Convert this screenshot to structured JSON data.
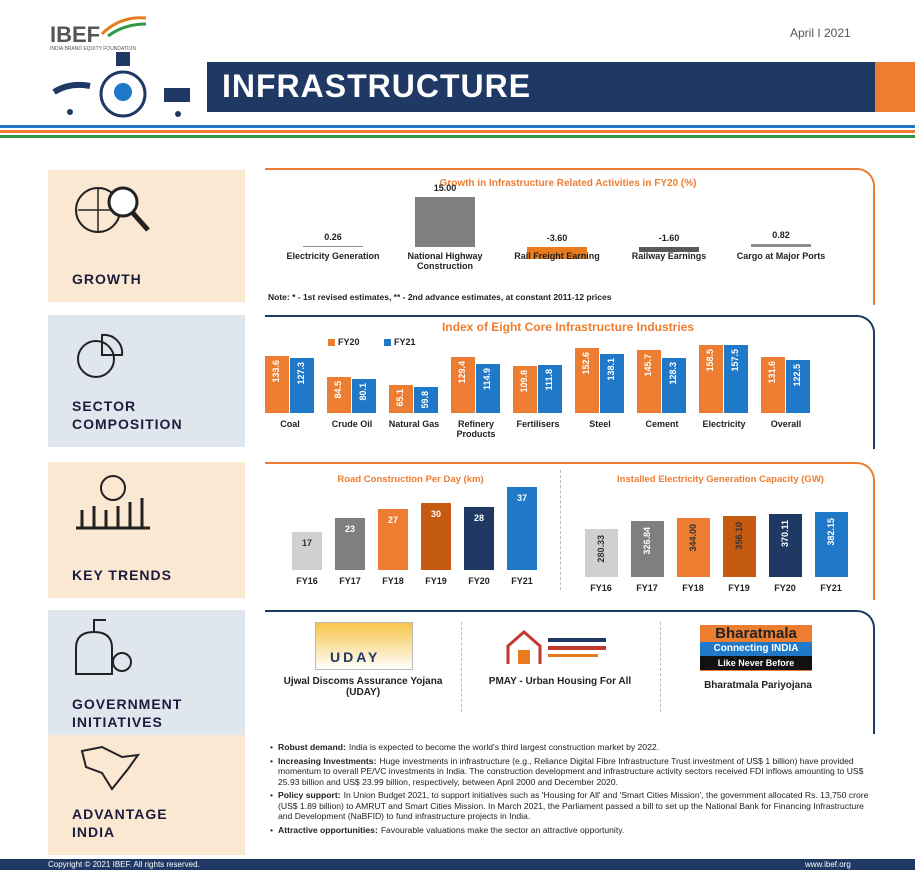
{
  "header": {
    "logo": "IBEF",
    "logo_sub": "INDIA BRAND EQUITY FOUNDATION",
    "date": "April I 2021",
    "title": "INFRASTRUCTURE"
  },
  "growth": {
    "label": "GROWTH",
    "chart": {
      "type": "bar",
      "title": "Growth in Infrastructure Related Activities in FY20 (%)",
      "categories": [
        "Electricity Generation",
        "National Highway Construction",
        "Rail Freight Earning",
        "Railway Earnings",
        "Cargo at Major Ports"
      ],
      "values": [
        0.26,
        15.0,
        -3.6,
        -1.6,
        0.82
      ],
      "value_labels": [
        "0.26",
        "15.00",
        "-3.60",
        "-1.60",
        "0.82"
      ],
      "colors": [
        "#8c8c8c",
        "#7f7f7f",
        "#e87b1e",
        "#595959",
        "#8c8c8c"
      ]
    },
    "note": "Note: * - 1st revised estimates, ** - 2nd advance estimates, at constant 2011-12 prices"
  },
  "sector": {
    "label": "SECTOR COMPOSITION",
    "chart": {
      "type": "bar",
      "title": "Index of Eight Core Infrastructure Industries",
      "categories": [
        "Coal",
        "Crude Oil",
        "Natural Gas",
        "Refinery Products",
        "Fertilisers",
        "Steel",
        "Cement",
        "Electricity",
        "Overall"
      ],
      "series": [
        {
          "name": "FY20",
          "color": "#ed7d31",
          "values": [
            133.6,
            84.5,
            65.1,
            129.4,
            109.8,
            152.6,
            145.7,
            158.5,
            131.6
          ]
        },
        {
          "name": "FY21",
          "color": "#1f78c8",
          "values": [
            127.3,
            80.1,
            59.8,
            114.9,
            111.8,
            138.1,
            128.3,
            157.5,
            122.5
          ]
        }
      ]
    }
  },
  "trends": {
    "label": "KEY TRENDS",
    "charts": [
      {
        "type": "bar",
        "title": "Road Construction Per Day (km)",
        "categories": [
          "FY16",
          "FY17",
          "FY18",
          "FY19",
          "FY20",
          "FY21"
        ],
        "values": [
          17,
          23,
          27,
          30,
          28,
          37
        ],
        "colors": [
          "#d0d0d0",
          "#7f7f7f",
          "#ed7d31",
          "#c55a11",
          "#1f3864",
          "#1f78c8"
        ],
        "label_colors": [
          "#333333",
          "#ffffff",
          "#ffffff",
          "#ffffff",
          "#ffffff",
          "#ffffff"
        ]
      },
      {
        "type": "bar",
        "title": "Installed Electricity Generation Capacity (GW)",
        "categories": [
          "FY16",
          "FY17",
          "FY18",
          "FY19",
          "FY20",
          "FY21"
        ],
        "values": [
          280.33,
          326.84,
          344.0,
          356.1,
          370.11,
          382.15
        ],
        "value_labels": [
          "280.33",
          "326.84",
          "344.00",
          "356.10",
          "370.11",
          "382.15"
        ],
        "colors": [
          "#d0d0d0",
          "#7f7f7f",
          "#ed7d31",
          "#c55a11",
          "#1f3864",
          "#1f78c8"
        ],
        "label_colors": [
          "#333333",
          "#ffffff",
          "#333333",
          "#333333",
          "#ffffff",
          "#ffffff"
        ]
      }
    ]
  },
  "government": {
    "label": "GOVERNMENT INITIATIVES",
    "items": [
      {
        "logo": "UDAY",
        "name": "Ujwal Discoms Assurance Yojana (UDAY)"
      },
      {
        "name": "PMAY - Urban Housing For All"
      },
      {
        "logo": "Bharatmala",
        "logo_line2": "Connecting INDIA",
        "logo_line3": "Like Never Before",
        "name": "Bharatmala Pariyojana"
      }
    ]
  },
  "advantage": {
    "label": "ADVANTAGE INDIA",
    "bullets": [
      {
        "lead": "Robust demand:",
        "text": "India is expected to become the world's third largest construction market by 2022."
      },
      {
        "lead": "Increasing Investments:",
        "text": "Huge investments in infrastructure (e.g., Reliance Digital Fibre Infrastructure Trust investment of US$ 1 billion) have provided momentum to overall PE/VC investments in India. The construction development and infrastructure activity sectors received FDI inflows amounting to US$ 25.93 billion and US$ 23.99 billion, respectively, between April 2000 and December 2020."
      },
      {
        "lead": "Policy support:",
        "text": "In Union Budget 2021, to support initiatives such as 'Housing for All' and 'Smart Cities Mission', the government allocated Rs. 13,750 crore (US$ 1.89 billion) to AMRUT and Smart Cities Mission. In March 2021, the Parliament passed a bill to set up the National Bank for Financing Infrastructure and Development (NaBFID) to fund infrastructure projects in India."
      },
      {
        "lead": "Attractive opportunities:",
        "text": "Favourable valuations make the sector an attractive opportunity."
      }
    ]
  },
  "footer": {
    "copyright": "Copyright © 2021 IBEF. All rights reserved.",
    "url": "www.ibef.org"
  }
}
